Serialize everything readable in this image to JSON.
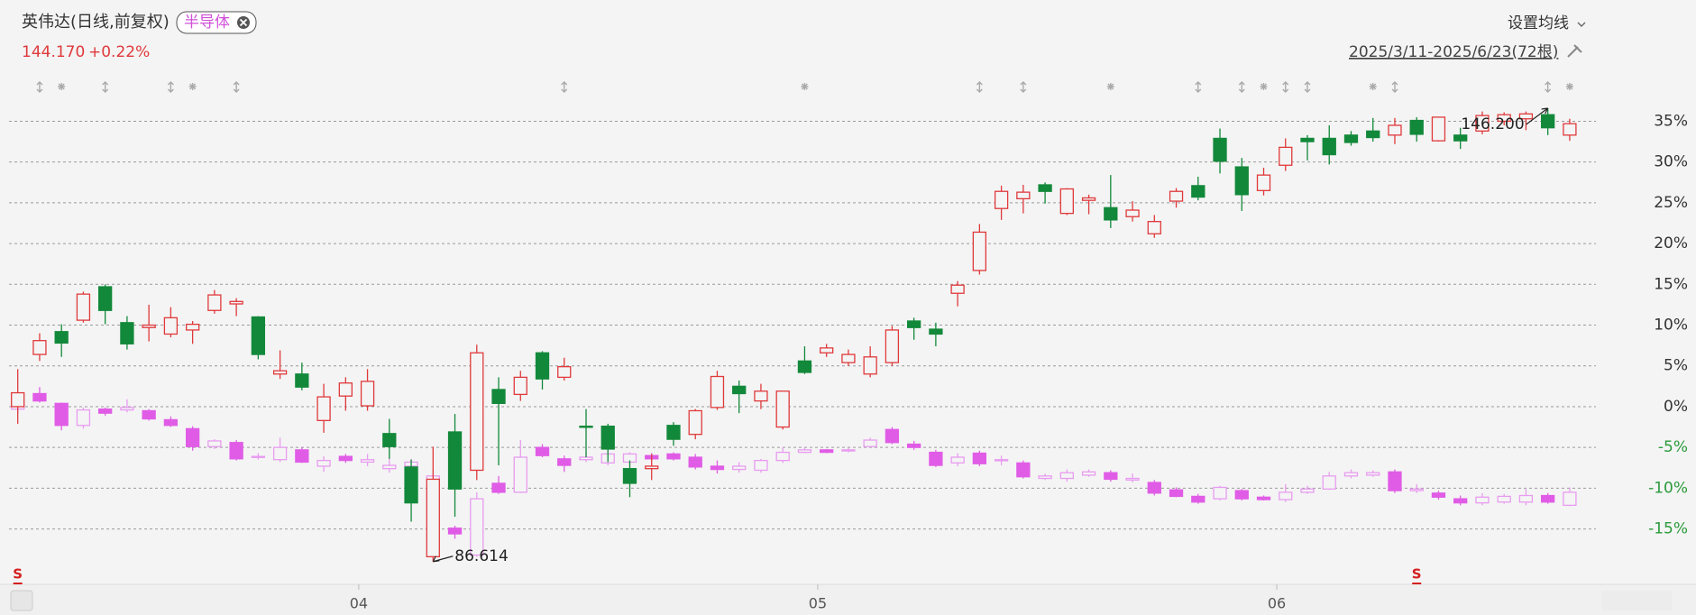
{
  "chart_data": {
    "type": "candlestick",
    "title": "英伟达(日线,前复权)",
    "price": "144.170",
    "change": "+0.22%",
    "ma_button": "设置均线",
    "range": "2025/3/11-2025/6/23(72根)",
    "xlim": [
      -0.4,
      72.2
    ],
    "xticks": [
      {
        "value": 15.6,
        "label": "04"
      },
      {
        "value": 36.6,
        "label": "05"
      },
      {
        "value": 57.6,
        "label": "06"
      }
    ],
    "ylim": [
      -19.8,
      40.8
    ],
    "yticks": [
      {
        "value": 35,
        "label": "35%"
      },
      {
        "value": 30,
        "label": "30%"
      },
      {
        "value": 25,
        "label": "25%"
      },
      {
        "value": 20,
        "label": "20%"
      },
      {
        "value": 15,
        "label": "15%"
      },
      {
        "value": 10,
        "label": "10%"
      },
      {
        "value": 5,
        "label": "5%"
      },
      {
        "value": 0,
        "label": "0%"
      },
      {
        "value": -5,
        "label": "-5%"
      },
      {
        "value": -10,
        "label": "-10%"
      },
      {
        "value": -15,
        "label": "-15%"
      }
    ],
    "tick_color": "#333333",
    "negative_tick_color": "#2a9a3a",
    "grid": true,
    "series": [
      {
        "name": "半导体",
        "up_color": "#e89cf0",
        "down_color": "#e05ce6",
        "open": [
          -0.3,
          1.6,
          0.4,
          -2.3,
          -0.3,
          -0.4,
          -0.5,
          -1.6,
          -2.7,
          -4.9,
          -4.4,
          -6.2,
          -6.5,
          -5.3,
          -7.3,
          -6.1,
          -6.8,
          -7.6,
          -7.3,
          -9.0,
          -14.9,
          -18.2,
          -9.4,
          -10.5,
          -5.0,
          -6.4,
          -6.5,
          -6.9,
          -6.8,
          -6.0,
          -5.8,
          -6.2,
          -7.3,
          -7.7,
          -7.8,
          -6.6,
          -5.6,
          -5.3,
          -5.4,
          -4.9,
          -2.8,
          -4.6,
          -5.6,
          -6.9,
          -5.7,
          -6.6,
          -6.9,
          -8.8,
          -8.8,
          -8.4,
          -8.1,
          -9.0,
          -9.3,
          -10.2,
          -11.0,
          -11.3,
          -10.3,
          -11.1,
          -11.4,
          -10.5,
          -10.1,
          -8.5,
          -8.4,
          -8.0,
          -10.3,
          -10.6,
          -11.3,
          -11.8,
          -11.7,
          -11.7,
          -10.9,
          -12.1
        ],
        "high": [
          0.8,
          2.4,
          0.5,
          -0.1,
          -0.1,
          0.9,
          -0.3,
          -1.2,
          -2.4,
          -4.0,
          -4.1,
          -5.7,
          -3.8,
          -5.0,
          -6.1,
          -5.8,
          -5.8,
          -6.2,
          -6.4,
          -7.8,
          -14.6,
          -10.5,
          -8.5,
          -4.1,
          -4.6,
          -6.0,
          -5.6,
          -5.3,
          -5.6,
          -5.7,
          -5.6,
          -5.8,
          -6.6,
          -6.8,
          -6.4,
          -5.0,
          -5.0,
          -5.2,
          -5.0,
          -3.8,
          -2.5,
          -4.2,
          -5.3,
          -5.7,
          -5.4,
          -6.0,
          -6.6,
          -8.2,
          -7.7,
          -7.7,
          -7.8,
          -8.2,
          -9.0,
          -9.9,
          -10.7,
          -9.7,
          -10.1,
          -10.9,
          -9.5,
          -9.7,
          -8.0,
          -7.7,
          -7.8,
          -7.7,
          -9.5,
          -10.3,
          -10.9,
          -10.6,
          -10.7,
          -10.1,
          -10.6,
          -9.9
        ],
        "low": [
          -0.8,
          0.5,
          -2.9,
          -2.7,
          -1.1,
          -0.7,
          -1.7,
          -2.5,
          -5.4,
          -5.2,
          -6.6,
          -6.5,
          -6.8,
          -6.9,
          -8.0,
          -6.9,
          -7.3,
          -8.1,
          -8.5,
          -9.5,
          -16.2,
          -18.4,
          -10.7,
          -10.6,
          -6.2,
          -8.0,
          -6.8,
          -7.2,
          -7.2,
          -6.6,
          -6.6,
          -7.7,
          -8.2,
          -8.1,
          -8.1,
          -6.9,
          -5.7,
          -5.7,
          -5.6,
          -5.0,
          -4.6,
          -5.3,
          -7.4,
          -7.3,
          -7.3,
          -7.2,
          -8.8,
          -9.0,
          -9.2,
          -8.6,
          -9.2,
          -9.3,
          -10.9,
          -11.1,
          -11.9,
          -11.5,
          -11.5,
          -11.5,
          -11.7,
          -10.7,
          -10.2,
          -8.8,
          -8.6,
          -10.6,
          -10.6,
          -11.4,
          -12.1,
          -12.1,
          -11.9,
          -12.1,
          -11.9,
          -12.2
        ],
        "close": [
          0.3,
          0.7,
          -2.3,
          -0.4,
          -0.8,
          -0.1,
          -1.5,
          -2.3,
          -4.9,
          -4.2,
          -6.4,
          -6.1,
          -5.0,
          -6.8,
          -6.6,
          -6.6,
          -6.5,
          -7.2,
          -6.8,
          -8.5,
          -15.6,
          -11.3,
          -10.5,
          -6.2,
          -6.0,
          -7.2,
          -6.2,
          -5.8,
          -5.8,
          -6.4,
          -6.4,
          -7.4,
          -7.7,
          -7.3,
          -6.6,
          -5.6,
          -5.3,
          -5.6,
          -5.3,
          -4.1,
          -4.4,
          -5.0,
          -7.2,
          -6.2,
          -7.0,
          -6.5,
          -8.6,
          -8.5,
          -8.1,
          -8.0,
          -8.9,
          -8.8,
          -10.6,
          -11.0,
          -11.7,
          -9.9,
          -11.3,
          -11.4,
          -10.5,
          -10.1,
          -8.5,
          -8.1,
          -8.1,
          -10.3,
          -10.1,
          -11.1,
          -11.8,
          -11.1,
          -11.0,
          -10.9,
          -11.7,
          -10.5
        ]
      },
      {
        "up_color": "#e0393b",
        "down_color": "#12893a",
        "open": [
          0,
          6.4,
          9.2,
          10.6,
          14.7,
          10.3,
          9.7,
          8.9,
          9.4,
          11.8,
          12.6,
          11.0,
          4.0,
          4.0,
          -1.7,
          1.3,
          0.1,
          -3.3,
          -7.4,
          -18.4,
          -3.1,
          -7.8,
          2.1,
          1.5,
          6.6,
          3.6,
          -2.4,
          -2.4,
          -7.6,
          -7.6,
          -2.3,
          -3.4,
          -0.1,
          2.5,
          0.7,
          -2.5,
          5.6,
          6.6,
          5.4,
          4.0,
          5.4,
          10.5,
          9.5,
          13.9,
          16.7,
          24.3,
          25.5,
          27.2,
          23.7,
          25.3,
          24.4,
          23.3,
          21.2,
          25.2,
          27.1,
          32.9,
          29.4,
          26.5,
          29.6,
          32.9,
          32.9,
          33.3,
          33.8,
          33.3,
          35.1,
          32.6,
          33.3,
          33.8,
          35.0,
          35.3,
          35.8,
          33.3
        ],
        "high": [
          4.6,
          9.0,
          10.1,
          14.1,
          15.0,
          11.1,
          12.5,
          12.2,
          10.5,
          14.3,
          13.3,
          11.1,
          6.9,
          5.4,
          2.8,
          3.6,
          4.6,
          -1.5,
          -6.5,
          -4.9,
          -0.9,
          7.6,
          3.6,
          4.4,
          6.8,
          6.0,
          -0.3,
          -2.1,
          -6.6,
          -5.8,
          -1.9,
          -0.3,
          4.4,
          3.2,
          2.8,
          1.9,
          7.4,
          7.7,
          7.0,
          7.4,
          9.9,
          10.9,
          10.3,
          15.4,
          22.4,
          27.1,
          27.2,
          27.5,
          26.8,
          26.0,
          28.4,
          25.2,
          23.5,
          26.8,
          28.2,
          34.1,
          30.5,
          29.3,
          32.9,
          33.3,
          34.5,
          33.8,
          35.4,
          35.4,
          35.5,
          35.5,
          34.2,
          36.2,
          36.1,
          36.2,
          36.6,
          35.3
        ],
        "low": [
          -2.1,
          5.6,
          6.1,
          10.3,
          10.1,
          7.0,
          8.0,
          8.5,
          7.7,
          11.4,
          11.1,
          5.8,
          3.4,
          2.0,
          -3.2,
          -0.5,
          -0.5,
          -6.4,
          -14.1,
          -19.0,
          -13.5,
          -9.0,
          -7.2,
          0.7,
          2.1,
          3.2,
          -6.2,
          -6.8,
          -11.1,
          -9.0,
          -4.8,
          -4.0,
          -0.4,
          -0.8,
          -0.3,
          -2.8,
          4.0,
          6.1,
          5.0,
          3.6,
          5.0,
          8.2,
          7.4,
          12.3,
          16.2,
          22.9,
          23.7,
          24.9,
          23.5,
          23.6,
          21.9,
          22.7,
          20.7,
          24.4,
          25.3,
          28.6,
          24.0,
          25.9,
          28.9,
          30.2,
          29.7,
          32.0,
          32.5,
          32.2,
          32.5,
          32.5,
          31.6,
          33.4,
          34.5,
          33.9,
          33.3,
          32.6
        ],
        "close": [
          1.7,
          8.1,
          7.8,
          13.8,
          11.8,
          7.7,
          10.0,
          10.9,
          10.1,
          13.7,
          12.9,
          6.4,
          4.4,
          2.4,
          1.2,
          2.9,
          3.1,
          -4.9,
          -11.8,
          -8.9,
          -10.1,
          6.6,
          0.4,
          3.6,
          3.4,
          4.9,
          -2.5,
          -5.2,
          -9.4,
          -7.3,
          -4.0,
          -0.5,
          3.7,
          1.6,
          1.9,
          1.9,
          4.2,
          7.2,
          6.4,
          6.1,
          9.4,
          9.7,
          8.9,
          14.9,
          21.4,
          26.4,
          26.3,
          26.4,
          26.7,
          25.6,
          22.9,
          24.1,
          22.7,
          26.4,
          25.7,
          30.1,
          26.0,
          28.4,
          31.8,
          32.5,
          30.9,
          32.4,
          33.0,
          34.5,
          33.4,
          35.5,
          32.6,
          35.7,
          35.8,
          35.9,
          34.2,
          34.7
        ]
      }
    ],
    "annotations": [
      {
        "text": "86.614",
        "series": 1,
        "at": 19,
        "anchor": "low"
      },
      {
        "text": "146.200",
        "series": 1,
        "at": 70,
        "anchor": "high"
      }
    ],
    "signals": [
      {
        "at": 0,
        "label": "S"
      },
      {
        "at": 64,
        "label": "S"
      }
    ]
  }
}
